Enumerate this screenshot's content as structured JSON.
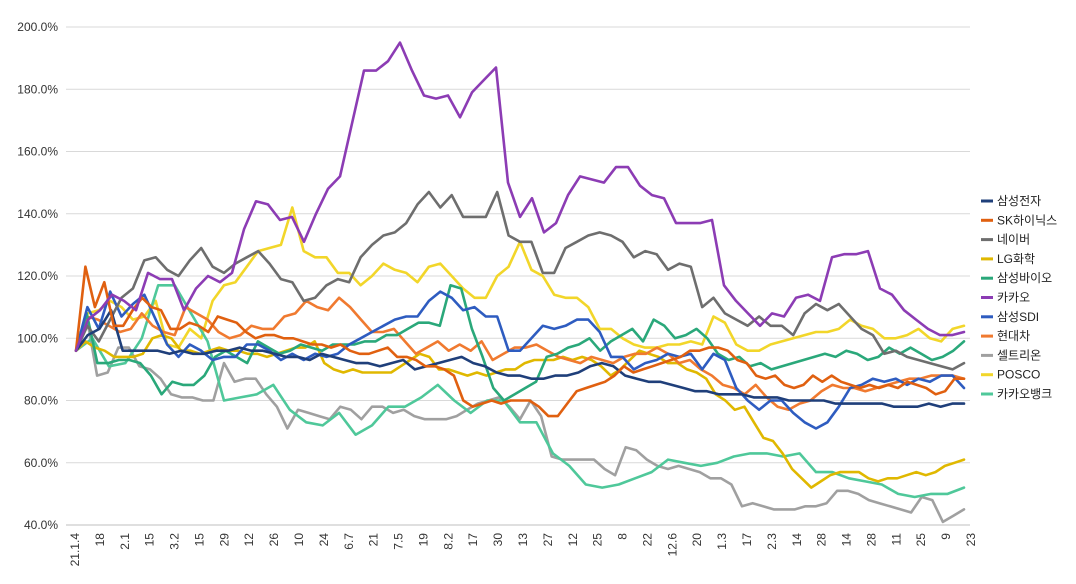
{
  "chart_data": {
    "type": "line",
    "title": "",
    "xlabel": "",
    "ylabel": "",
    "ylim": [
      40,
      200
    ],
    "yticks": [
      "200.0%",
      "180.0%",
      "160.0%",
      "140.0%",
      "120.0%",
      "100.0%",
      "80.0%",
      "60.0%",
      "40.0%"
    ],
    "grid": "horizontal",
    "legend_position": "right",
    "x_tick_labels": [
      "21.1.4",
      "18",
      "2.1",
      "15",
      "3.2",
      "15",
      "29",
      "12",
      "26",
      "10",
      "24",
      "6.7",
      "21",
      "7.5",
      "19",
      "8.2",
      "17",
      "30",
      "13",
      "27",
      "12",
      "25",
      "8",
      "22",
      "12.6",
      "20",
      "1.3",
      "17",
      "2.3",
      "14",
      "28",
      "14",
      "28",
      "11",
      "25",
      "9",
      "23"
    ],
    "series": [
      {
        "name": "삼성전자",
        "color": "#1f3f7a",
        "values": [
          96,
          101,
          103,
          109,
          96,
          96,
          96,
          96,
          95,
          96,
          95,
          95,
          96,
          96,
          97,
          96,
          96,
          95,
          94,
          94,
          93,
          95,
          94,
          93,
          92,
          92,
          91,
          92,
          93,
          90,
          91,
          92,
          93,
          94,
          92,
          91,
          89,
          88,
          88,
          87,
          87,
          88,
          88,
          89,
          91,
          92,
          91,
          88,
          87,
          86,
          86,
          85,
          84,
          83,
          83,
          82,
          82,
          82,
          81,
          81,
          81,
          80,
          80,
          80,
          80,
          79,
          79,
          79,
          79,
          79,
          78,
          78,
          78,
          79,
          78,
          79,
          79
        ]
      },
      {
        "name": "SK하이닉스",
        "color": "#e06010",
        "values": [
          96,
          123,
          110,
          118,
          104,
          104,
          109,
          113,
          110,
          109,
          103,
          103,
          105,
          104,
          102,
          107,
          106,
          105,
          102,
          100,
          101,
          101,
          100,
          100,
          99,
          98,
          98,
          97,
          98,
          96,
          95,
          95,
          96,
          97,
          94,
          94,
          93,
          91,
          91,
          90,
          88,
          80,
          78,
          79,
          80,
          79,
          80,
          80,
          80,
          78,
          75,
          75,
          79,
          83,
          84,
          85,
          86,
          88,
          91,
          89,
          90,
          91,
          92,
          93,
          94,
          96,
          96,
          97,
          97,
          96,
          93,
          92,
          88,
          87,
          88,
          85,
          84,
          85,
          88,
          86,
          88,
          86,
          85,
          84,
          85,
          84,
          85,
          84,
          86,
          85,
          84,
          82,
          83,
          87,
          87
        ]
      },
      {
        "name": "네이버",
        "color": "#6e6e6e",
        "values": [
          96,
          104,
          99,
          106,
          113,
          116,
          125,
          126,
          122,
          120,
          125,
          129,
          123,
          121,
          124,
          126,
          128,
          124,
          119,
          118,
          112,
          113,
          117,
          119,
          118,
          126,
          130,
          133,
          134,
          137,
          143,
          147,
          142,
          146,
          139,
          139,
          139,
          147,
          133,
          131,
          131,
          121,
          121,
          129,
          131,
          133,
          134,
          133,
          131,
          126,
          128,
          127,
          122,
          124,
          123,
          110,
          113,
          108,
          106,
          104,
          107,
          104,
          104,
          101,
          108,
          111,
          109,
          111,
          107,
          103,
          101,
          95,
          96,
          94,
          93,
          92,
          91,
          90,
          92
        ]
      },
      {
        "name": "LG화학",
        "color": "#e0b800",
        "values": [
          96,
          99,
          97,
          96,
          94,
          94,
          94,
          95,
          100,
          101,
          100,
          96,
          96,
          95,
          96,
          97,
          96,
          96,
          95,
          95,
          94,
          95,
          96,
          97,
          97,
          99,
          92,
          90,
          89,
          90,
          89,
          89,
          89,
          89,
          91,
          93,
          95,
          94,
          90,
          90,
          89,
          88,
          89,
          88,
          89,
          90,
          90,
          92,
          93,
          93,
          93,
          94,
          93,
          94,
          93,
          91,
          88,
          90,
          93,
          96,
          95,
          94,
          92,
          92,
          90,
          89,
          87,
          82,
          80,
          77,
          78,
          73,
          68,
          67,
          63,
          58,
          55,
          52,
          54,
          56,
          57,
          57,
          57,
          55,
          54,
          55,
          55,
          56,
          57,
          56,
          57,
          59,
          60,
          61
        ]
      },
      {
        "name": "삼성바이오",
        "color": "#2aa87a",
        "values": [
          96,
          108,
          92,
          92,
          93,
          93,
          92,
          88,
          82,
          86,
          85,
          85,
          88,
          94,
          96,
          94,
          92,
          99,
          97,
          95,
          96,
          98,
          97,
          96,
          98,
          98,
          98,
          99,
          99,
          101,
          101,
          103,
          105,
          105,
          104,
          117,
          116,
          103,
          94,
          84,
          80,
          82,
          84,
          86,
          94,
          95,
          97,
          98,
          100,
          96,
          99,
          101,
          103,
          99,
          106,
          104,
          100,
          101,
          103,
          100,
          95,
          93,
          94,
          91,
          92,
          90,
          91,
          92,
          93,
          94,
          95,
          94,
          96,
          95,
          93,
          94,
          97,
          95,
          97,
          95,
          93,
          94,
          96,
          99
        ]
      },
      {
        "name": "카카오",
        "color": "#8c3cb4",
        "values": [
          96,
          106,
          109,
          114,
          112,
          109,
          121,
          119,
          119,
          109,
          116,
          120,
          118,
          121,
          135,
          144,
          143,
          138,
          139,
          131,
          140,
          148,
          152,
          169,
          186,
          186,
          189,
          195,
          186,
          178,
          177,
          178,
          171,
          179,
          183,
          187,
          150,
          139,
          145,
          134,
          137,
          146,
          152,
          151,
          150,
          155,
          155,
          149,
          146,
          145,
          137,
          137,
          137,
          138,
          117,
          112,
          108,
          104,
          108,
          107,
          113,
          114,
          112,
          126,
          127,
          127,
          128,
          116,
          114,
          109,
          106,
          103,
          101,
          101,
          102
        ]
      },
      {
        "name": "삼성SDI",
        "color": "#2e5cc0",
        "values": [
          96,
          110,
          103,
          115,
          107,
          111,
          114,
          106,
          98,
          94,
          98,
          96,
          93,
          94,
          94,
          98,
          98,
          96,
          93,
          95,
          93,
          95,
          94,
          95,
          98,
          100,
          102,
          104,
          106,
          107,
          107,
          112,
          115,
          113,
          109,
          110,
          107,
          107,
          96,
          96,
          100,
          104,
          103,
          104,
          106,
          106,
          102,
          94,
          94,
          90,
          92,
          93,
          95,
          94,
          95,
          90,
          95,
          93,
          84,
          80,
          77,
          80,
          80,
          76,
          73,
          71,
          73,
          78,
          84,
          85,
          87,
          86,
          87,
          85,
          87,
          86,
          88,
          88,
          84
        ]
      },
      {
        "name": "현대차",
        "color": "#f07a30",
        "values": [
          96,
          107,
          106,
          104,
          102,
          103,
          108,
          104,
          102,
          101,
          110,
          108,
          106,
          102,
          100,
          101,
          104,
          103,
          103,
          107,
          108,
          112,
          110,
          109,
          113,
          110,
          106,
          102,
          102,
          103,
          99,
          95,
          97,
          99,
          96,
          98,
          96,
          99,
          93,
          95,
          97,
          97,
          98,
          96,
          94,
          93,
          92,
          94,
          93,
          92,
          94,
          95,
          95,
          97,
          95,
          92,
          93,
          90,
          88,
          85,
          84,
          82,
          85,
          81,
          78,
          77,
          79,
          80,
          83,
          85,
          84,
          84,
          83,
          84,
          85,
          86,
          87,
          87,
          88,
          88,
          88,
          87
        ]
      },
      {
        "name": "셀트리온",
        "color": "#a0a0a0",
        "values": [
          96,
          107,
          88,
          89,
          97,
          97,
          91,
          90,
          87,
          82,
          81,
          81,
          80,
          80,
          92,
          86,
          87,
          87,
          82,
          78,
          71,
          77,
          76,
          75,
          74,
          78,
          77,
          74,
          78,
          78,
          76,
          77,
          75,
          74,
          74,
          74,
          75,
          77,
          79,
          80,
          81,
          78,
          74,
          80,
          75,
          62,
          61,
          61,
          61,
          61,
          58,
          56,
          65,
          64,
          61,
          59,
          58,
          59,
          58,
          57,
          55,
          55,
          53,
          46,
          47,
          46,
          45,
          45,
          45,
          46,
          46,
          47,
          51,
          51,
          50,
          48,
          47,
          46,
          45,
          44,
          49,
          48,
          41,
          43,
          45
        ]
      },
      {
        "name": "POSCO",
        "color": "#f2d62a",
        "values": [
          96,
          108,
          109,
          112,
          110,
          106,
          107,
          112,
          98,
          97,
          103,
          100,
          112,
          117,
          118,
          123,
          128,
          129,
          130,
          142,
          128,
          126,
          126,
          121,
          121,
          117,
          120,
          124,
          122,
          121,
          118,
          123,
          124,
          120,
          116,
          113,
          113,
          120,
          123,
          131,
          122,
          120,
          114,
          113,
          113,
          110,
          103,
          103,
          100,
          98,
          97,
          97,
          98,
          98,
          99,
          98,
          107,
          105,
          98,
          96,
          96,
          98,
          99,
          100,
          101,
          102,
          102,
          103,
          106,
          104,
          103,
          100,
          100,
          101,
          103,
          100,
          99,
          103,
          104
        ]
      },
      {
        "name": "카카오뱅크",
        "color": "#4fc89a",
        "values": [
          96,
          100,
          91,
          92,
          100,
          117,
          117,
          108,
          99,
          80,
          81,
          82,
          85,
          77,
          73,
          72,
          76,
          69,
          72,
          78,
          78,
          81,
          85,
          80,
          76,
          80,
          80,
          73,
          73,
          63,
          59,
          53,
          52,
          53,
          55,
          57,
          61,
          60,
          59,
          60,
          62,
          63,
          63,
          62,
          63,
          57,
          57,
          55,
          54,
          53,
          50,
          49,
          50,
          50,
          52
        ]
      }
    ]
  }
}
